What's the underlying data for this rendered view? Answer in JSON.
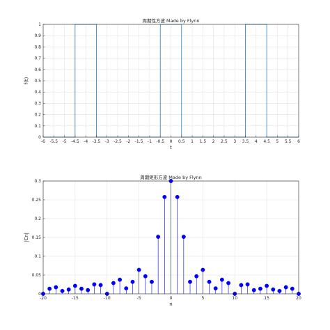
{
  "chart_data": [
    {
      "type": "line",
      "title": "周期性方波 Made by Flynn",
      "xlabel": "t",
      "ylabel": "f(t)",
      "xlim": [
        -6,
        6
      ],
      "ylim": [
        0,
        1
      ],
      "grid": true,
      "x_ticks": [
        "-6",
        "-5.5",
        "-5",
        "-4.5",
        "-4",
        "-3.5",
        "-3",
        "-2.5",
        "-2",
        "-1.5",
        "-1",
        "-0.5",
        "0",
        "0.5",
        "1",
        "1.5",
        "2",
        "2.5",
        "3",
        "3.5",
        "4",
        "4.5",
        "5",
        "5.5",
        "6"
      ],
      "y_ticks": [
        "0",
        "0.1",
        "0.2",
        "0.3",
        "0.4",
        "0.5",
        "0.6",
        "0.7",
        "0.8",
        "0.9",
        "1"
      ],
      "series": [
        {
          "color": "#0072BD",
          "x": [
            -6,
            -4.5,
            -4.5,
            -3.5,
            -3.5,
            -0.5,
            -0.5,
            0.5,
            0.5,
            3.5,
            3.5,
            4.5,
            4.5,
            6
          ],
          "y": [
            0,
            0,
            1,
            1,
            0,
            0,
            1,
            1,
            0,
            0,
            1,
            1,
            0,
            0
          ]
        }
      ]
    },
    {
      "type": "scatter",
      "title": "周期矩形方波 Made by Flynn",
      "xlabel": "n",
      "ylabel": "|Cn|",
      "xlim": [
        -20,
        20
      ],
      "ylim": [
        0,
        0.3
      ],
      "grid": true,
      "style": "stem",
      "x_ticks": [
        "-20",
        "-15",
        "-10",
        "-5",
        "0",
        "5",
        "10",
        "15",
        "20"
      ],
      "y_ticks": [
        "0",
        "0.05",
        "0.1",
        "0.15",
        "0.2",
        "0.25",
        "0.3"
      ],
      "series": [
        {
          "color": "#0000FF",
          "x": [
            -20,
            -19,
            -18,
            -17,
            -16,
            -15,
            -14,
            -13,
            -12,
            -11,
            -10,
            -9,
            -8,
            -7,
            -6,
            -5,
            -4,
            -3,
            -2,
            -1,
            0,
            1,
            2,
            3,
            4,
            5,
            6,
            7,
            8,
            9,
            10,
            11,
            12,
            13,
            14,
            15,
            16,
            17,
            18,
            19,
            20
          ],
          "y": [
            0,
            0.0135,
            0.0174,
            0.0075,
            0.0114,
            0.0212,
            0.0135,
            0.0098,
            0.025,
            0.0232,
            0,
            0.0286,
            0.0375,
            0.0144,
            0.0318,
            0.0637,
            0.0467,
            0.0318,
            0.1516,
            0.2575,
            0.3,
            0.2575,
            0.1516,
            0.0318,
            0.0467,
            0.0637,
            0.0318,
            0.0144,
            0.0375,
            0.0286,
            0,
            0.0232,
            0.025,
            0.0098,
            0.0135,
            0.0212,
            0.0114,
            0.0075,
            0.0174,
            0.0135,
            0
          ]
        }
      ]
    }
  ]
}
